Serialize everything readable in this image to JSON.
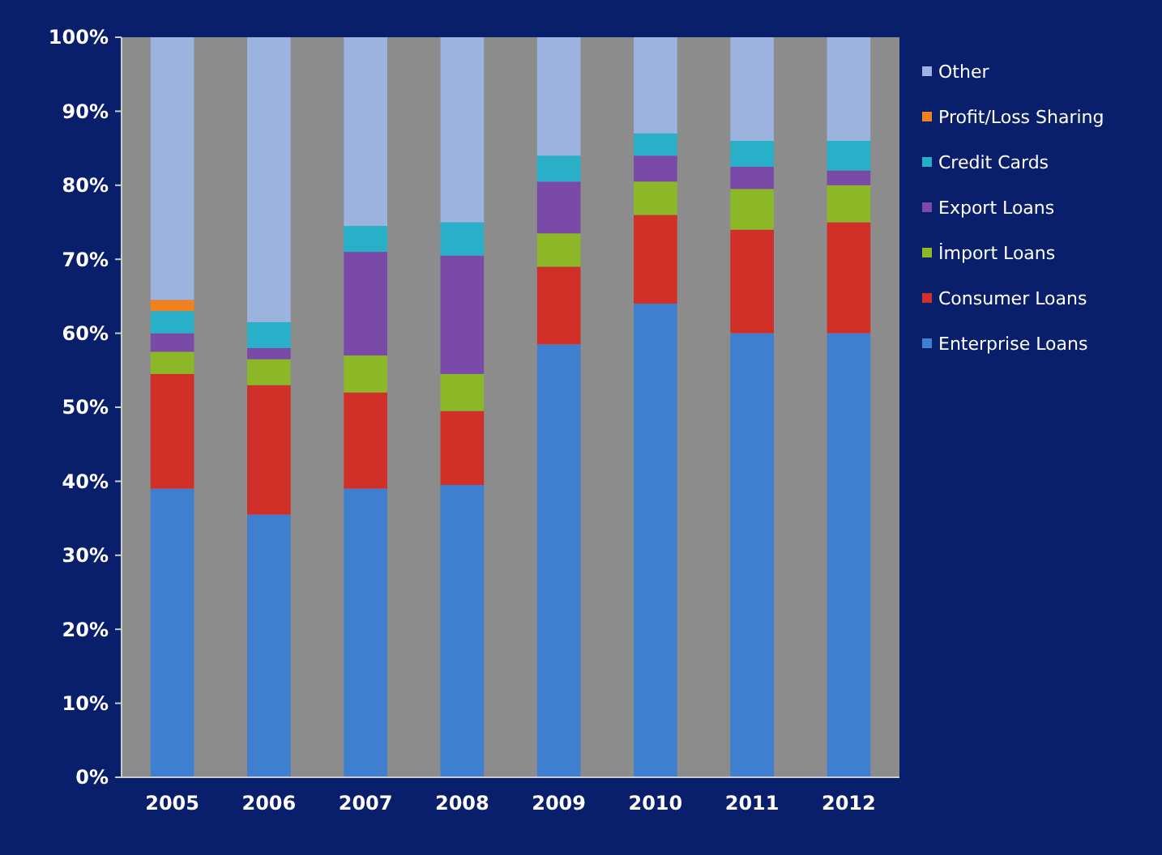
{
  "chart_data": {
    "type": "bar",
    "stacked": true,
    "categories": [
      "2005",
      "2006",
      "2007",
      "2008",
      "2009",
      "2010",
      "2011",
      "2012"
    ],
    "series": [
      {
        "name": "Enterprise Loans",
        "color": "#3f7fd0",
        "values": [
          39,
          35.5,
          39,
          39.5,
          58.5,
          64,
          60,
          60
        ]
      },
      {
        "name": "Consumer Loans",
        "color": "#d03028",
        "values": [
          15.5,
          17.5,
          13,
          10,
          10.5,
          12,
          14,
          15
        ]
      },
      {
        "name": "İmport Loans",
        "color": "#8cb828",
        "values": [
          3,
          3.5,
          5,
          5,
          4.5,
          4.5,
          5.5,
          5
        ]
      },
      {
        "name": "Export Loans",
        "color": "#7a4aa8",
        "values": [
          2.5,
          1.5,
          14,
          16,
          7,
          3.5,
          3,
          2
        ]
      },
      {
        "name": "Credit Cards",
        "color": "#28b0c8",
        "values": [
          3,
          3.5,
          3.5,
          4.5,
          3.5,
          3,
          3.5,
          4
        ]
      },
      {
        "name": "Profit/Loss Sharing",
        "color": "#f08020",
        "values": [
          1.5,
          0,
          0,
          0,
          0,
          0,
          0,
          0
        ]
      },
      {
        "name": "Other",
        "color": "#9bb3de",
        "values": [
          35.5,
          38.5,
          25.5,
          25,
          16,
          13,
          14,
          14
        ]
      }
    ],
    "ylim": [
      0,
      100
    ],
    "yticks": [
      {
        "value": 0,
        "label": "0%"
      },
      {
        "value": 10,
        "label": "10%"
      },
      {
        "value": 20,
        "label": "20%"
      },
      {
        "value": 30,
        "label": "30%"
      },
      {
        "value": 40,
        "label": "40%"
      },
      {
        "value": 50,
        "label": "50%"
      },
      {
        "value": 60,
        "label": "60%"
      },
      {
        "value": 70,
        "label": "70%"
      },
      {
        "value": 80,
        "label": "80%"
      },
      {
        "value": 90,
        "label": "90%"
      },
      {
        "value": 100,
        "label": "100%"
      }
    ],
    "legend": "right"
  }
}
